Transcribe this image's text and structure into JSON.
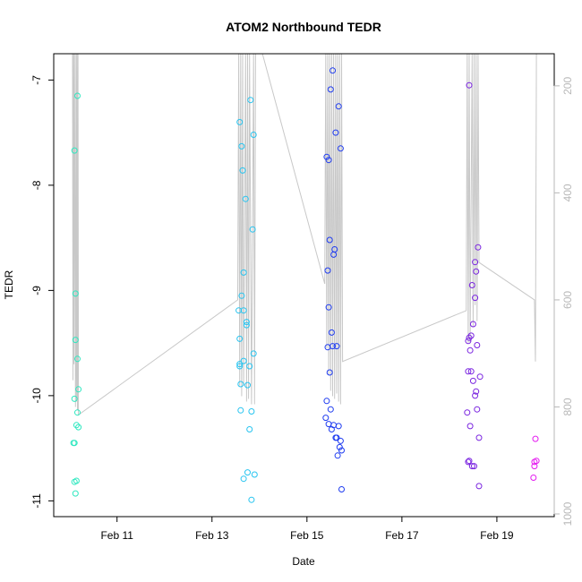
{
  "chart_data": {
    "type": "scatter",
    "title": "ATOM2 Northbound TEDR",
    "xlabel": "Date",
    "ylabel": "TEDR",
    "x_ticks": [
      "Feb 11",
      "Feb 13",
      "Feb 15",
      "Feb 17",
      "Feb 19"
    ],
    "y_ticks": [
      "-7",
      "-8",
      "-9",
      "-10",
      "-11"
    ],
    "y2_ticks": [
      "200",
      "400",
      "600",
      "800",
      "1000"
    ],
    "xlim": [
      "2024-02-09T16:00",
      "2024-02-20T05:00"
    ],
    "ylim": [
      -11.15,
      -6.75
    ],
    "y2lim": [
      1005,
      140
    ],
    "y2_inverted": true,
    "grid": false,
    "legend": false,
    "colors": {
      "trace": "#c8c8c8",
      "right_axis": "#b8b8b8",
      "main_axis": "#000000"
    },
    "series": [
      {
        "color": "#2fe8c0",
        "points": [
          [
            "2024-02-10T02:30",
            -7.67
          ],
          [
            "2024-02-10T02:30",
            -10.03
          ],
          [
            "2024-02-10T02:30",
            -10.45
          ],
          [
            "2024-02-10T02:30",
            -10.82
          ],
          [
            "2024-02-10T03:00",
            -9.03
          ],
          [
            "2024-02-10T03:00",
            -9.47
          ],
          [
            "2024-02-10T03:00",
            -10.93
          ],
          [
            "2024-02-10T03:30",
            -10.28
          ],
          [
            "2024-02-10T04:00",
            -7.15
          ],
          [
            "2024-02-10T04:00",
            -9.65
          ],
          [
            "2024-02-10T04:00",
            -10.16
          ],
          [
            "2024-02-10T04:30",
            -9.94
          ],
          [
            "2024-02-10T04:30",
            -10.3
          ],
          [
            "2024-02-10T03:30",
            -10.81
          ],
          [
            "2024-02-10T02:00",
            -10.45
          ]
        ]
      },
      {
        "color": "#27c4f0",
        "points": [
          [
            "2024-02-13T13:30",
            -9.19
          ],
          [
            "2024-02-13T14:00",
            -7.4
          ],
          [
            "2024-02-13T14:00",
            -9.46
          ],
          [
            "2024-02-13T14:00",
            -9.7
          ],
          [
            "2024-02-13T14:00",
            -9.72
          ],
          [
            "2024-02-13T14:30",
            -9.89
          ],
          [
            "2024-02-13T14:30",
            -10.14
          ],
          [
            "2024-02-13T15:00",
            -7.63
          ],
          [
            "2024-02-13T15:00",
            -9.05
          ],
          [
            "2024-02-13T15:30",
            -7.86
          ],
          [
            "2024-02-13T16:00",
            -8.83
          ],
          [
            "2024-02-13T16:00",
            -9.19
          ],
          [
            "2024-02-13T16:00",
            -9.67
          ],
          [
            "2024-02-13T16:00",
            -10.79
          ],
          [
            "2024-02-13T17:00",
            -8.13
          ],
          [
            "2024-02-13T17:30",
            -9.3
          ],
          [
            "2024-02-13T17:30",
            -9.33
          ],
          [
            "2024-02-13T18:00",
            -9.9
          ],
          [
            "2024-02-13T18:00",
            -10.73
          ],
          [
            "2024-02-13T19:00",
            -9.72
          ],
          [
            "2024-02-13T19:00",
            -10.32
          ],
          [
            "2024-02-13T19:30",
            -7.19
          ],
          [
            "2024-02-13T20:00",
            -10.15
          ],
          [
            "2024-02-13T20:00",
            -10.99
          ],
          [
            "2024-02-13T20:30",
            -8.42
          ],
          [
            "2024-02-13T21:00",
            -9.6
          ],
          [
            "2024-02-13T21:00",
            -7.52
          ],
          [
            "2024-02-13T21:30",
            -10.75
          ]
        ]
      },
      {
        "color": "#1f3cf0",
        "points": [
          [
            "2024-02-15T09:30",
            -10.21
          ],
          [
            "2024-02-15T10:00",
            -7.73
          ],
          [
            "2024-02-15T10:00",
            -10.05
          ],
          [
            "2024-02-15T10:30",
            -8.81
          ],
          [
            "2024-02-15T10:30",
            -9.54
          ],
          [
            "2024-02-15T11:00",
            -7.76
          ],
          [
            "2024-02-15T11:00",
            -9.16
          ],
          [
            "2024-02-15T11:00",
            -10.27
          ],
          [
            "2024-02-15T11:30",
            -8.52
          ],
          [
            "2024-02-15T11:30",
            -9.78
          ],
          [
            "2024-02-15T12:00",
            -7.09
          ],
          [
            "2024-02-15T12:00",
            -10.13
          ],
          [
            "2024-02-15T12:30",
            -9.4
          ],
          [
            "2024-02-15T12:30",
            -10.32
          ],
          [
            "2024-02-15T13:00",
            -6.91
          ],
          [
            "2024-02-15T13:00",
            -9.53
          ],
          [
            "2024-02-15T13:30",
            -8.66
          ],
          [
            "2024-02-15T13:30",
            -10.28
          ],
          [
            "2024-02-15T14:00",
            -8.61
          ],
          [
            "2024-02-15T14:30",
            -7.5
          ],
          [
            "2024-02-15T14:30",
            -10.4
          ],
          [
            "2024-02-15T15:00",
            -9.53
          ],
          [
            "2024-02-15T15:00",
            -10.4
          ],
          [
            "2024-02-15T15:30",
            -10.57
          ],
          [
            "2024-02-15T16:00",
            -7.25
          ],
          [
            "2024-02-15T16:00",
            -10.29
          ],
          [
            "2024-02-15T16:30",
            -10.49
          ],
          [
            "2024-02-15T17:00",
            -7.65
          ],
          [
            "2024-02-15T17:00",
            -10.43
          ],
          [
            "2024-02-15T17:30",
            -10.52
          ],
          [
            "2024-02-15T17:30",
            -10.89
          ]
        ]
      },
      {
        "color": "#7a24e0",
        "points": [
          [
            "2024-02-18T09:00",
            -10.16
          ],
          [
            "2024-02-18T09:30",
            -9.48
          ],
          [
            "2024-02-18T09:30",
            -9.77
          ],
          [
            "2024-02-18T09:30",
            -10.63
          ],
          [
            "2024-02-18T10:00",
            -7.05
          ],
          [
            "2024-02-18T10:00",
            -9.45
          ],
          [
            "2024-02-18T10:00",
            -10.62
          ],
          [
            "2024-02-18T10:30",
            -9.57
          ],
          [
            "2024-02-18T10:30",
            -10.29
          ],
          [
            "2024-02-18T11:00",
            -9.43
          ],
          [
            "2024-02-18T11:00",
            -9.77
          ],
          [
            "2024-02-18T11:30",
            -8.95
          ],
          [
            "2024-02-18T11:30",
            -10.67
          ],
          [
            "2024-02-18T12:00",
            -9.32
          ],
          [
            "2024-02-18T12:00",
            -9.86
          ],
          [
            "2024-02-18T12:30",
            -10.67
          ],
          [
            "2024-02-18T13:00",
            -8.73
          ],
          [
            "2024-02-18T13:00",
            -9.07
          ],
          [
            "2024-02-18T13:00",
            -10.0
          ],
          [
            "2024-02-18T13:30",
            -8.82
          ],
          [
            "2024-02-18T13:30",
            -9.96
          ],
          [
            "2024-02-18T14:00",
            -9.52
          ],
          [
            "2024-02-18T14:00",
            -10.13
          ],
          [
            "2024-02-18T14:30",
            -8.59
          ],
          [
            "2024-02-18T15:00",
            -10.4
          ],
          [
            "2024-02-18T15:00",
            -10.86
          ],
          [
            "2024-02-18T15:30",
            -9.82
          ]
        ]
      },
      {
        "color": "#e41cf0",
        "points": [
          [
            "2024-02-19T18:30",
            -10.78
          ],
          [
            "2024-02-19T19:00",
            -10.63
          ],
          [
            "2024-02-19T19:00",
            -10.67
          ],
          [
            "2024-02-19T19:30",
            -10.41
          ],
          [
            "2024-02-19T20:00",
            -10.62
          ]
        ]
      }
    ],
    "trace_y2": [
      [
        "2024-02-10T01:30",
        140
      ],
      [
        "2024-02-10T01:45",
        750
      ],
      [
        "2024-02-10T02:00",
        140
      ],
      [
        "2024-02-10T02:15",
        720
      ],
      [
        "2024-02-10T02:30",
        140
      ],
      [
        "2024-02-10T03:00",
        800
      ],
      [
        "2024-02-10T03:15",
        140
      ],
      [
        "2024-02-10T03:30",
        790
      ],
      [
        "2024-02-10T03:45",
        140
      ],
      [
        "2024-02-10T04:00",
        805
      ],
      [
        "2024-02-10T04:15",
        140
      ],
      [
        "2024-02-10T04:30",
        815
      ],
      [
        "2024-02-13T13:00",
        600
      ],
      [
        "2024-02-13T13:30",
        140
      ],
      [
        "2024-02-13T14:00",
        760
      ],
      [
        "2024-02-13T14:30",
        140
      ],
      [
        "2024-02-13T15:00",
        780
      ],
      [
        "2024-02-13T15:30",
        140
      ],
      [
        "2024-02-13T16:00",
        760
      ],
      [
        "2024-02-13T17:00",
        140
      ],
      [
        "2024-02-13T17:30",
        790
      ],
      [
        "2024-02-13T18:00",
        140
      ],
      [
        "2024-02-13T18:30",
        785
      ],
      [
        "2024-02-13T19:00",
        140
      ],
      [
        "2024-02-13T20:00",
        795
      ],
      [
        "2024-02-13T21:00",
        140
      ],
      [
        "2024-02-13T21:30",
        795
      ],
      [
        "2024-02-13T22:00",
        140
      ],
      [
        "2024-02-14T01:30",
        140
      ],
      [
        "2024-02-15T09:00",
        570
      ],
      [
        "2024-02-15T09:30",
        140
      ],
      [
        "2024-02-15T10:00",
        690
      ],
      [
        "2024-02-15T10:30",
        140
      ],
      [
        "2024-02-15T11:00",
        740
      ],
      [
        "2024-02-15T11:30",
        140
      ],
      [
        "2024-02-15T12:00",
        770
      ],
      [
        "2024-02-15T12:30",
        140
      ],
      [
        "2024-02-15T13:00",
        780
      ],
      [
        "2024-02-15T13:30",
        140
      ],
      [
        "2024-02-15T14:00",
        785
      ],
      [
        "2024-02-15T14:30",
        140
      ],
      [
        "2024-02-15T15:00",
        775
      ],
      [
        "2024-02-15T15:30",
        140
      ],
      [
        "2024-02-15T16:00",
        790
      ],
      [
        "2024-02-15T16:30",
        140
      ],
      [
        "2024-02-15T17:00",
        795
      ],
      [
        "2024-02-15T17:30",
        140
      ],
      [
        "2024-02-15T18:00",
        715
      ],
      [
        "2024-02-18T08:30",
        620
      ],
      [
        "2024-02-18T09:00",
        140
      ],
      [
        "2024-02-18T09:30",
        680
      ],
      [
        "2024-02-18T10:00",
        140
      ],
      [
        "2024-02-18T10:30",
        680
      ],
      [
        "2024-02-18T11:30",
        140
      ],
      [
        "2024-02-18T12:00",
        650
      ],
      [
        "2024-02-18T12:30",
        140
      ],
      [
        "2024-02-18T13:00",
        610
      ],
      [
        "2024-02-18T13:30",
        140
      ],
      [
        "2024-02-18T14:00",
        640
      ],
      [
        "2024-02-18T14:30",
        140
      ],
      [
        "2024-02-18T15:00",
        530
      ],
      [
        "2024-02-19T19:00",
        600
      ],
      [
        "2024-02-19T19:30",
        715
      ],
      [
        "2024-02-19T20:00",
        140
      ]
    ]
  }
}
